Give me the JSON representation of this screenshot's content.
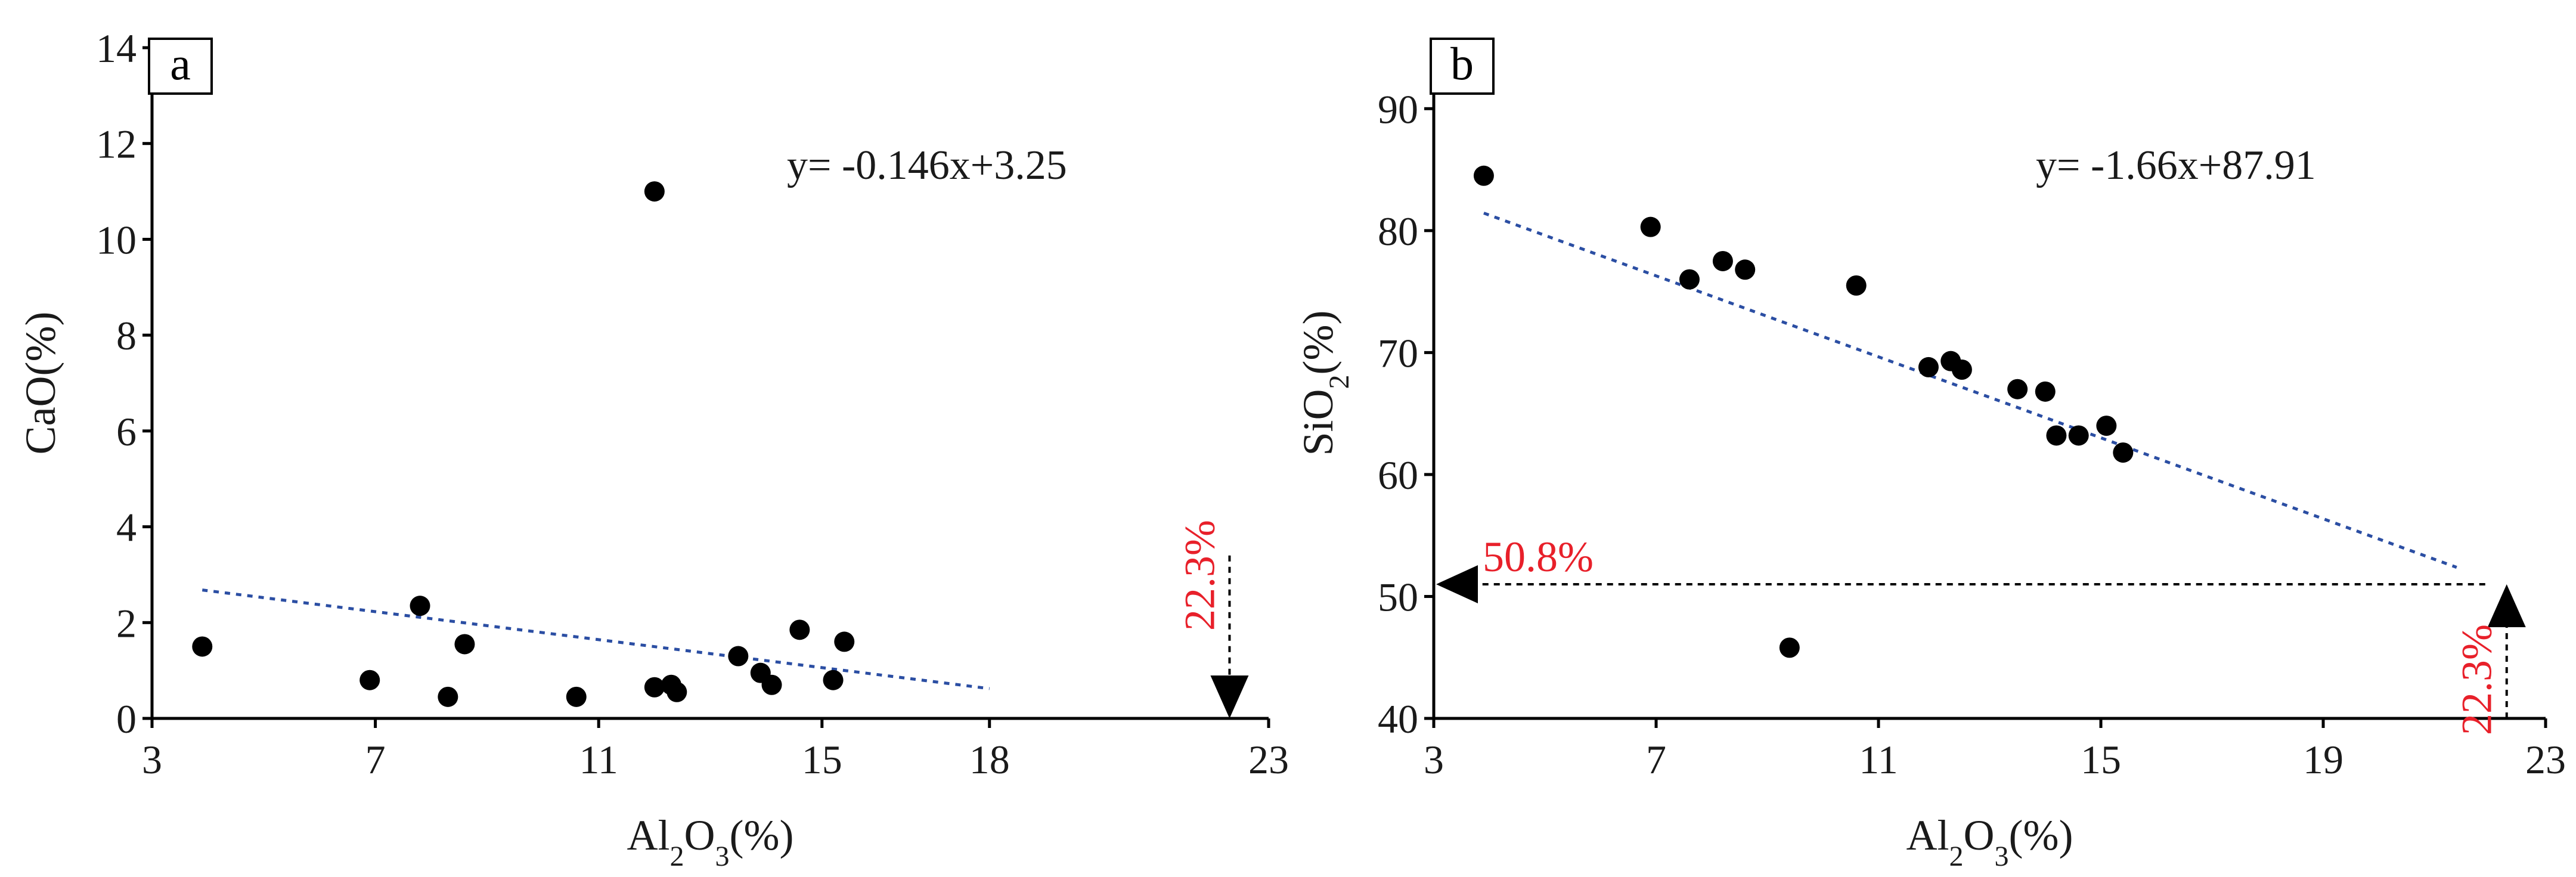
{
  "chart_data": [
    {
      "type": "scatter",
      "panel_label": "a",
      "equation": "y= -0.146x+3.25",
      "xlabel": {
        "pre": "Al",
        "sub1": "2",
        "mid": "O",
        "sub2": "3",
        "post": "(%)"
      },
      "ylabel": {
        "pre": "CaO(%)",
        "sub1": "",
        "mid": "",
        "sub2": "",
        "post": ""
      },
      "xlim": [
        3,
        23
      ],
      "ylim": [
        0,
        14
      ],
      "xticks": [
        3,
        7,
        11,
        15,
        18,
        23
      ],
      "yticks": [
        0,
        2,
        4,
        6,
        8,
        10,
        12,
        14
      ],
      "points": {
        "x": [
          3.9,
          6.9,
          7.8,
          8.3,
          8.6,
          10.6,
          12.0,
          12.0,
          12.3,
          12.4,
          13.5,
          13.9,
          14.1,
          14.6,
          15.2,
          15.4
        ],
        "y": [
          1.5,
          0.8,
          2.35,
          0.45,
          1.55,
          0.45,
          11.0,
          0.65,
          0.7,
          0.55,
          1.3,
          0.95,
          0.7,
          1.85,
          0.8,
          1.6
        ]
      },
      "trendline": {
        "slope": -0.146,
        "intercept": 3.25,
        "x_range": [
          3.9,
          18.0
        ]
      },
      "annotations": [
        {
          "type": "arrow-down",
          "x": 22.3,
          "y_from": 3.4,
          "y_to": 0.0,
          "label": "22.3%",
          "label_color": "#e8202a"
        }
      ]
    },
    {
      "type": "scatter",
      "panel_label": "b",
      "equation": "y= -1.66x+87.91",
      "xlabel": {
        "pre": "Al",
        "sub1": "2",
        "mid": "O",
        "sub2": "3",
        "post": "(%)"
      },
      "ylabel": {
        "pre": "SiO",
        "sub1": "2",
        "mid": "",
        "sub2": "",
        "post": "(%)"
      },
      "xlim": [
        3,
        23
      ],
      "ylim": [
        40,
        95
      ],
      "xticks": [
        3,
        7,
        11,
        15,
        19,
        23
      ],
      "yticks": [
        40,
        50,
        60,
        70,
        80,
        90
      ],
      "points": {
        "x": [
          3.9,
          6.9,
          7.6,
          8.2,
          8.6,
          9.4,
          10.6,
          11.9,
          12.3,
          12.5,
          13.5,
          14.0,
          14.2,
          14.6,
          15.1,
          15.4
        ],
        "y": [
          84.5,
          80.3,
          76.0,
          77.5,
          76.8,
          45.8,
          75.5,
          68.8,
          69.3,
          68.6,
          67.0,
          66.8,
          63.2,
          63.2,
          64.0,
          61.8
        ]
      },
      "trendline": {
        "slope": -1.66,
        "intercept": 87.91,
        "x_range": [
          3.9,
          21.4
        ]
      },
      "annotations": [
        {
          "type": "arrow-up",
          "x": 22.3,
          "y_from": 40.0,
          "y_to": 51.0,
          "label": "22.3%",
          "label_color": "#e8202a"
        },
        {
          "type": "arrow-left",
          "y": 51.0,
          "x_from": 22.3,
          "x_to": 3.0,
          "label": "50.8%",
          "label_color": "#e8202a"
        }
      ]
    }
  ]
}
